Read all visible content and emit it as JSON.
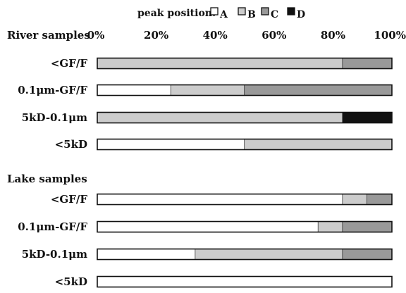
{
  "chart_data": {
    "type": "bar",
    "orientation": "horizontal",
    "stacked": true,
    "percent": true,
    "xlim": [
      0,
      100
    ],
    "x_ticks": [
      "0%",
      "20%",
      "40%",
      "60%",
      "80%",
      "100%"
    ],
    "legend": {
      "title": "peak position:",
      "placement": "top",
      "items": [
        {
          "label": "A",
          "color": "#ffffff"
        },
        {
          "label": "B",
          "color": "#cccccc"
        },
        {
          "label": "C",
          "color": "#999999"
        },
        {
          "label": "D",
          "color": "#111111"
        }
      ]
    },
    "groups": [
      {
        "title": "River samples",
        "rows": [
          {
            "label": "<GF/F",
            "values": [
              0,
              83.3,
              16.7,
              0
            ]
          },
          {
            "label": "0.1μm-GF/F",
            "values": [
              25,
              25,
              50,
              0
            ]
          },
          {
            "label": "5kD-0.1μm",
            "values": [
              0,
              83.3,
              0,
              16.7
            ]
          },
          {
            "label": "<5kD",
            "values": [
              50,
              50,
              0,
              0
            ]
          }
        ]
      },
      {
        "title": "Lake samples",
        "rows": [
          {
            "label": "<GF/F",
            "values": [
              83.3,
              8.3,
              8.4,
              0
            ]
          },
          {
            "label": "0.1μm-GF/F",
            "values": [
              75,
              8.3,
              16.7,
              0
            ]
          },
          {
            "label": "5kD-0.1μm",
            "values": [
              33.3,
              50,
              16.7,
              0
            ]
          },
          {
            "label": "<5kD",
            "values": [
              100,
              0,
              0,
              0
            ]
          }
        ]
      }
    ]
  }
}
